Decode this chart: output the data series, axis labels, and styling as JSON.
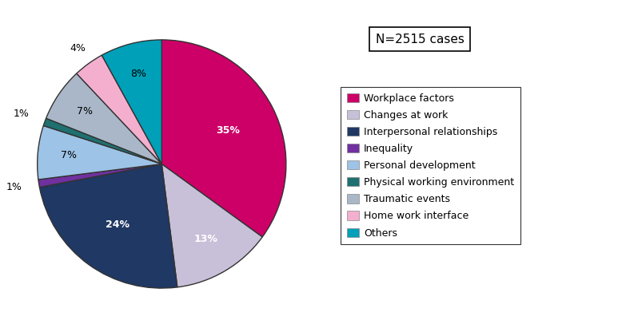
{
  "title_box": "N=2515 cases",
  "slices": [
    {
      "label": "Workplace factors",
      "pct": 35,
      "color": "#CC0066"
    },
    {
      "label": "Changes at work",
      "pct": 13,
      "color": "#C8C0D8"
    },
    {
      "label": "Interpersonal relationships",
      "pct": 24,
      "color": "#1F3864"
    },
    {
      "label": "Inequality",
      "pct": 1,
      "color": "#7030A0"
    },
    {
      "label": "Personal development",
      "pct": 7,
      "color": "#9DC3E6"
    },
    {
      "label": "Physical working environment",
      "pct": 1,
      "color": "#1F7070"
    },
    {
      "label": "Traumatic events",
      "pct": 7,
      "color": "#A9B7C8"
    },
    {
      "label": "Home work interface",
      "pct": 4,
      "color": "#F4AFCF"
    },
    {
      "label": "Others",
      "pct": 8,
      "color": "#00A0B8"
    }
  ],
  "startangle": 90,
  "legend_fontsize": 9,
  "pct_fontsize": 9,
  "background_color": "#FFFFFF"
}
